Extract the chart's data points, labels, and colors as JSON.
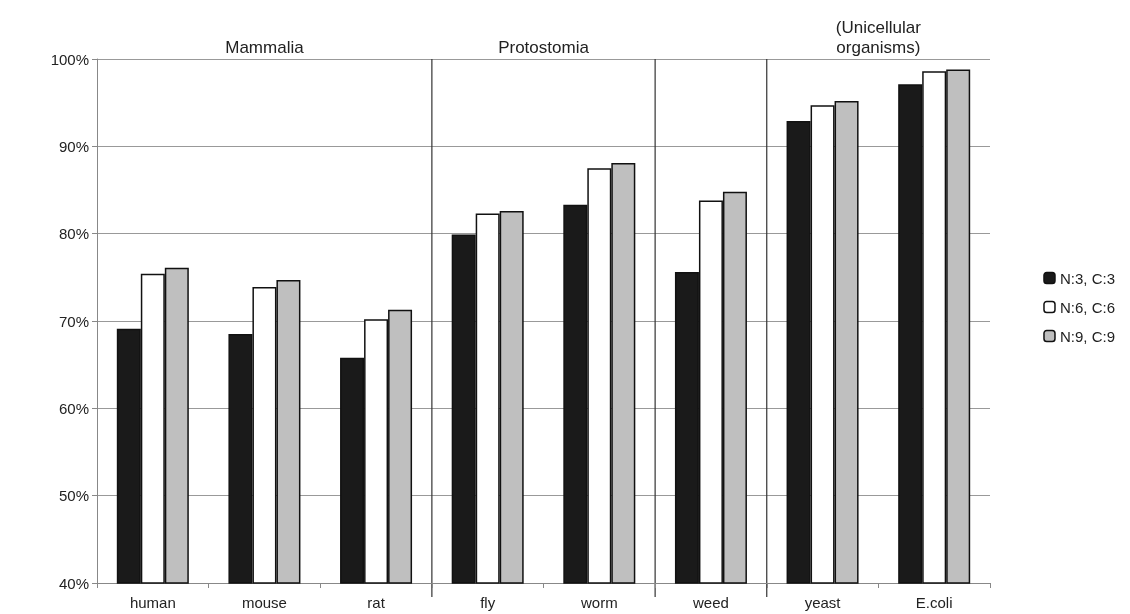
{
  "chart_data": {
    "type": "bar",
    "categories": [
      "human",
      "mouse",
      "rat",
      "fly",
      "worm",
      "weed",
      "yeast",
      "E.coli"
    ],
    "series": [
      {
        "name": "N:3, C:3",
        "color": "#1a1a1a",
        "values": [
          69.1,
          68.5,
          65.8,
          79.9,
          83.3,
          75.6,
          92.9,
          97.1
        ]
      },
      {
        "name": "N:6, C:6",
        "color": "#ffffff",
        "values": [
          75.4,
          73.9,
          70.2,
          82.3,
          87.5,
          83.8,
          94.7,
          98.6
        ]
      },
      {
        "name": "N:9, C:9",
        "color": "#bfbfbf",
        "values": [
          76.1,
          74.7,
          71.3,
          82.6,
          88.1,
          84.8,
          95.2,
          98.8
        ]
      }
    ],
    "ylim": [
      40,
      100
    ],
    "yticks": [
      {
        "value": 40,
        "label": "40%"
      },
      {
        "value": 50,
        "label": "50%"
      },
      {
        "value": 60,
        "label": "60%"
      },
      {
        "value": 70,
        "label": "70%"
      },
      {
        "value": 80,
        "label": "80%"
      },
      {
        "value": 90,
        "label": "90%"
      },
      {
        "value": 100,
        "label": "100%"
      }
    ],
    "annotations": [
      "Mammalia",
      "Protostomia",
      "(Unicellular\norganisms)"
    ],
    "grid": "y",
    "legend": "right"
  }
}
